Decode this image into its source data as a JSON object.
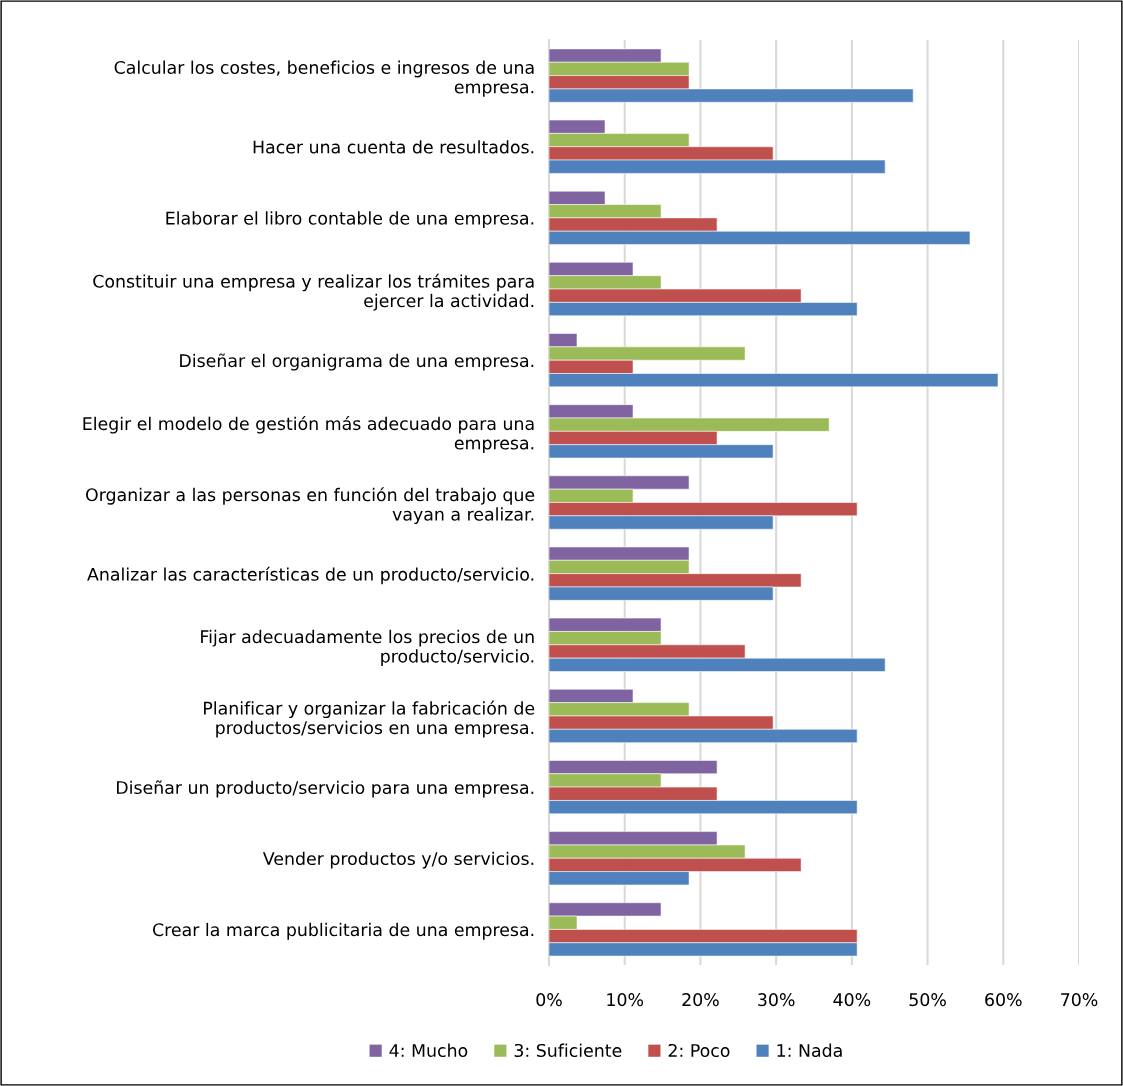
{
  "chart_data": {
    "type": "bar",
    "orientation": "horizontal",
    "categories": [
      "Calcular los costes, beneficios e ingresos de una\nempresa.",
      "Hacer una cuenta de resultados.",
      "Elaborar el libro contable de una empresa.",
      "Constituir una empresa y realizar los trámites para\nejercer la actividad.",
      "Diseñar el organigrama de una empresa.",
      "Elegir el modelo de gestión más adecuado para una\nempresa.",
      "Organizar a las personas en función del trabajo que\nvayan a realizar.",
      "Analizar las características de un producto/servicio.",
      "Fijar adecuadamente los precios de un\nproducto/servicio.",
      "Planificar y organizar la fabricación de\nproductos/servicios en una empresa.",
      "Diseñar un producto/servicio para una empresa.",
      "Vender productos y/o servicios.",
      "Crear la marca publicitaria de una empresa."
    ],
    "series": [
      {
        "name": "4: Mucho",
        "color": "#8064a2",
        "values": [
          14.8,
          7.4,
          7.4,
          11.1,
          3.7,
          11.1,
          18.5,
          18.5,
          14.8,
          11.1,
          22.2,
          22.2,
          14.8
        ]
      },
      {
        "name": "3: Suficiente",
        "color": "#9bbb59",
        "values": [
          18.5,
          18.5,
          14.8,
          14.8,
          25.9,
          37.0,
          11.1,
          18.5,
          14.8,
          18.5,
          14.8,
          25.9,
          3.7
        ]
      },
      {
        "name": "2: Poco",
        "color": "#c0504d",
        "values": [
          18.5,
          29.6,
          22.2,
          33.3,
          11.1,
          22.2,
          40.7,
          33.3,
          25.9,
          29.6,
          22.2,
          33.3,
          40.7
        ]
      },
      {
        "name": "1: Nada",
        "color": "#4f81bd",
        "values": [
          48.1,
          44.4,
          55.6,
          40.7,
          59.3,
          29.6,
          29.6,
          29.6,
          44.4,
          40.7,
          40.7,
          18.5,
          40.7
        ]
      }
    ],
    "xlim": [
      0,
      70
    ],
    "xticks": [
      {
        "value": 0,
        "label": "0%"
      },
      {
        "value": 10,
        "label": "10%"
      },
      {
        "value": 20,
        "label": "20%"
      },
      {
        "value": 30,
        "label": "30%"
      },
      {
        "value": 40,
        "label": "40%"
      },
      {
        "value": 50,
        "label": "50%"
      },
      {
        "value": 60,
        "label": "60%"
      },
      {
        "value": 70,
        "label": "70%"
      }
    ],
    "grid": "x",
    "legend": "bottom"
  }
}
